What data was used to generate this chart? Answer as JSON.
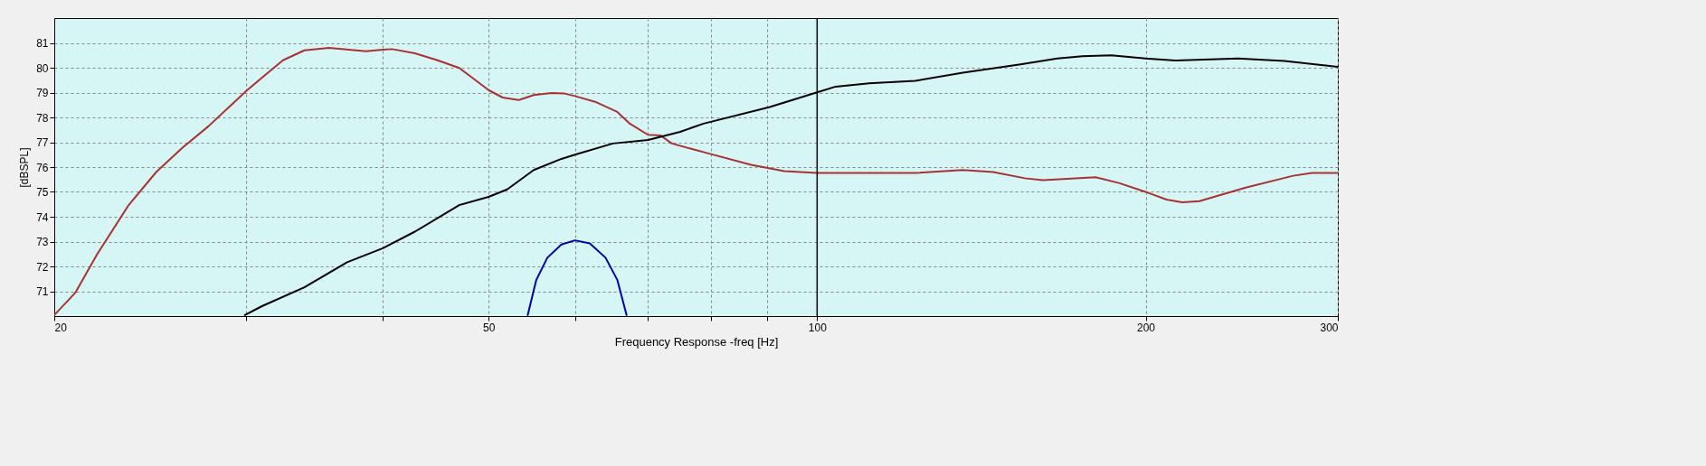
{
  "chart_data": {
    "type": "line",
    "xlabel": "Frequency Response -freq [Hz]",
    "ylabel": "[dBSPL]",
    "log": "x",
    "grid": true,
    "line_style": "solid",
    "marker": "none",
    "xlim": [
      20,
      300
    ],
    "xticks": [
      20,
      {
        "value": 30,
        "label": null
      },
      {
        "value": 40,
        "label": null
      },
      50,
      {
        "value": 60,
        "label": null
      },
      {
        "value": 70,
        "label": null
      },
      {
        "value": 80,
        "label": null
      },
      {
        "value": 90,
        "label": null
      },
      100,
      200,
      300
    ],
    "ylim": [
      70,
      82
    ],
    "yticks": [
      71,
      72,
      73,
      74,
      75,
      76,
      77,
      78,
      79,
      80,
      81
    ],
    "ref_lines": [
      {
        "axis": "x",
        "value": 100,
        "color": "#000000"
      }
    ],
    "series": [
      {
        "color": "#a83232",
        "x": [
          20,
          20.9,
          21.9,
          23.4,
          24.8,
          26.2,
          27.7,
          30,
          31,
          32.4,
          33.9,
          35.7,
          38.6,
          40,
          40.8,
          42.8,
          44.9,
          47,
          48.3,
          50,
          51.5,
          53.3,
          55,
          57.1,
          58.7,
          60,
          62.6,
          65.6,
          67.4,
          70,
          71.9,
          73.6,
          79.5,
          87,
          93.3,
          100,
          123,
          136,
          145,
          155,
          161,
          180,
          189,
          200,
          209,
          216,
          224,
          247,
          273,
          284,
          300
        ],
        "values": [
          70.04,
          70.93,
          72.5,
          74.47,
          75.8,
          76.77,
          77.65,
          79.07,
          79.6,
          80.3,
          80.7,
          80.8,
          80.66,
          80.73,
          80.75,
          80.58,
          80.3,
          79.99,
          79.6,
          79.1,
          78.8,
          78.7,
          78.9,
          78.98,
          78.96,
          78.86,
          78.63,
          78.22,
          77.74,
          77.3,
          77.27,
          76.95,
          76.55,
          76.09,
          75.84,
          75.76,
          75.76,
          75.88,
          75.8,
          75.55,
          75.47,
          75.59,
          75.36,
          75.0,
          74.69,
          74.58,
          74.63,
          75.17,
          75.65,
          75.76,
          75.76
        ]
      },
      {
        "color": "#000000",
        "x": [
          29.9,
          31,
          33.9,
          37.1,
          40,
          42.8,
          47,
          50,
          52,
          55,
          58.3,
          60,
          65,
          70,
          74.9,
          78.7,
          90.5,
          100,
          104,
          111.6,
          123,
          136,
          153.6,
          166,
          175,
          186,
          200,
          213,
          243,
          268,
          300
        ],
        "values": [
          70.04,
          70.4,
          71.16,
          72.17,
          72.73,
          73.4,
          74.47,
          74.8,
          75.1,
          75.88,
          76.33,
          76.5,
          76.95,
          77.09,
          77.42,
          77.75,
          78.42,
          79.01,
          79.24,
          79.37,
          79.47,
          79.8,
          80.14,
          80.37,
          80.46,
          80.5,
          80.37,
          80.29,
          80.37,
          80.27,
          80.04
        ]
      },
      {
        "color": "#0000b0",
        "x": [
          54.3,
          55.3,
          56.6,
          58.3,
          60,
          61.9,
          64,
          65.6,
          66.9
        ],
        "values": [
          70.04,
          71.46,
          72.35,
          72.88,
          73.05,
          72.93,
          72.35,
          71.46,
          70.04
        ]
      }
    ]
  }
}
